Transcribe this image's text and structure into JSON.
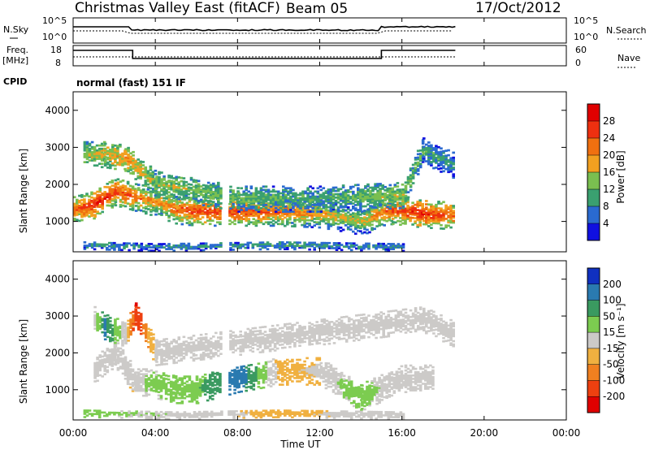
{
  "header": {
    "title": "Christmas Valley East (fitACF)",
    "beam": "Beam 05",
    "date": "17/Oct/2012"
  },
  "top_panels": {
    "nsky_label": "N.Sky",
    "nsky_ticks": [
      "10^5",
      "10^0"
    ],
    "nsearch_ticks": [
      "10^5",
      "10^0"
    ],
    "nsearch_label": "N.Search",
    "freq_label_1": "Freq.",
    "freq_label_2": "[MHz]",
    "freq_ticks": [
      "18",
      "8"
    ],
    "nave_ticks": [
      "60",
      "0"
    ],
    "nave_label": "Nave",
    "cpid_label": "CPID",
    "cpid_value": "normal (fast) 151 IF"
  },
  "axes": {
    "xlabel": "Time UT",
    "ylabel": "Slant Range [km]",
    "x_ticks": [
      "00:00",
      "04:00",
      "08:00",
      "12:00",
      "16:00",
      "20:00",
      "00:00"
    ],
    "y_ticks": [
      "1000",
      "2000",
      "3000",
      "4000"
    ]
  },
  "colorbars": {
    "power": {
      "label": "Power [dB]",
      "ticks": [
        "4",
        "8",
        "12",
        "16",
        "20",
        "24",
        "28"
      ],
      "colors": [
        "#1010e0",
        "#2a6ad0",
        "#3aa070",
        "#7abf50",
        "#f2a020",
        "#f07010",
        "#ee3010",
        "#e00000"
      ]
    },
    "velocity": {
      "label": "Velocity [m s⁻¹]",
      "ticks": [
        "200",
        "100",
        "50",
        "15",
        "-15",
        "-50",
        "-100",
        "-200"
      ],
      "colors": [
        "#1030c0",
        "#2a7ab0",
        "#3a9a60",
        "#7ccc50",
        "#cccac8",
        "#f0b040",
        "#f08020",
        "#ee4010",
        "#e00000"
      ]
    }
  },
  "chart_data": [
    {
      "type": "heatmap",
      "title": "Power [dB]",
      "xlabel": "Time UT",
      "ylabel": "Slant Range [km]",
      "xlim": [
        0,
        24
      ],
      "ylim": [
        180,
        4500
      ],
      "colorbar_range": [
        0,
        30
      ],
      "series": [
        {
          "values": [
            [
              0,
              1300,
              22
            ],
            [
              1,
              1450,
              26
            ],
            [
              2,
              1800,
              24
            ],
            [
              3,
              1650,
              22
            ],
            [
              4,
              1500,
              18
            ],
            [
              5,
              1300,
              22
            ],
            [
              6,
              1250,
              24
            ],
            [
              8,
              1250,
              24
            ],
            [
              10,
              1250,
              22
            ],
            [
              12,
              1200,
              18
            ],
            [
              14,
              1000,
              16
            ],
            [
              15.5,
              1300,
              24
            ],
            [
              17,
              1200,
              26
            ],
            [
              18.5,
              1150,
              22
            ]
          ]
        },
        {
          "values": [
            [
              0.5,
              2800,
              14
            ],
            [
              1.5,
              2800,
              16
            ],
            [
              2.5,
              2700,
              18
            ],
            [
              4,
              2000,
              14
            ],
            [
              8,
              1600,
              12
            ],
            [
              12,
              1600,
              10
            ],
            [
              16,
              1700,
              14
            ],
            [
              17,
              2900,
              10
            ],
            [
              18.5,
              2500,
              8
            ]
          ]
        },
        {
          "values": [
            [
              0.5,
              350,
              10
            ],
            [
              4,
              300,
              8
            ],
            [
              10,
              350,
              10
            ],
            [
              16,
              300,
              8
            ]
          ]
        }
      ]
    },
    {
      "type": "heatmap",
      "title": "Velocity [m s-1]",
      "xlabel": "Time UT",
      "ylabel": "Slant Range [km]",
      "xlim": [
        0,
        24
      ],
      "ylim": [
        180,
        4500
      ],
      "colorbar_range": [
        -200,
        200
      ],
      "series": [
        {
          "values": [
            [
              1,
              1500,
              0
            ],
            [
              2,
              2000,
              0
            ],
            [
              3,
              1200,
              -10
            ],
            [
              3.5,
              1200,
              30
            ],
            [
              5,
              1000,
              40
            ],
            [
              6,
              1000,
              60
            ],
            [
              8,
              1300,
              150
            ],
            [
              10,
              1500,
              -30
            ],
            [
              12,
              1500,
              -15
            ],
            [
              13,
              1100,
              30
            ],
            [
              14,
              800,
              40
            ],
            [
              16,
              1300,
              0
            ],
            [
              17.5,
              1300,
              0
            ]
          ]
        },
        {
          "values": [
            [
              1,
              2900,
              0
            ],
            [
              1.5,
              2700,
              120
            ],
            [
              2.5,
              2500,
              0
            ],
            [
              3,
              3000,
              -150
            ],
            [
              4,
              2000,
              0
            ],
            [
              17,
              2900,
              20
            ],
            [
              18.5,
              2500,
              0
            ]
          ]
        },
        {
          "values": [
            [
              0.5,
              350,
              30
            ],
            [
              5,
              300,
              20
            ],
            [
              10,
              350,
              -40
            ],
            [
              16,
              300,
              20
            ]
          ]
        }
      ]
    }
  ]
}
